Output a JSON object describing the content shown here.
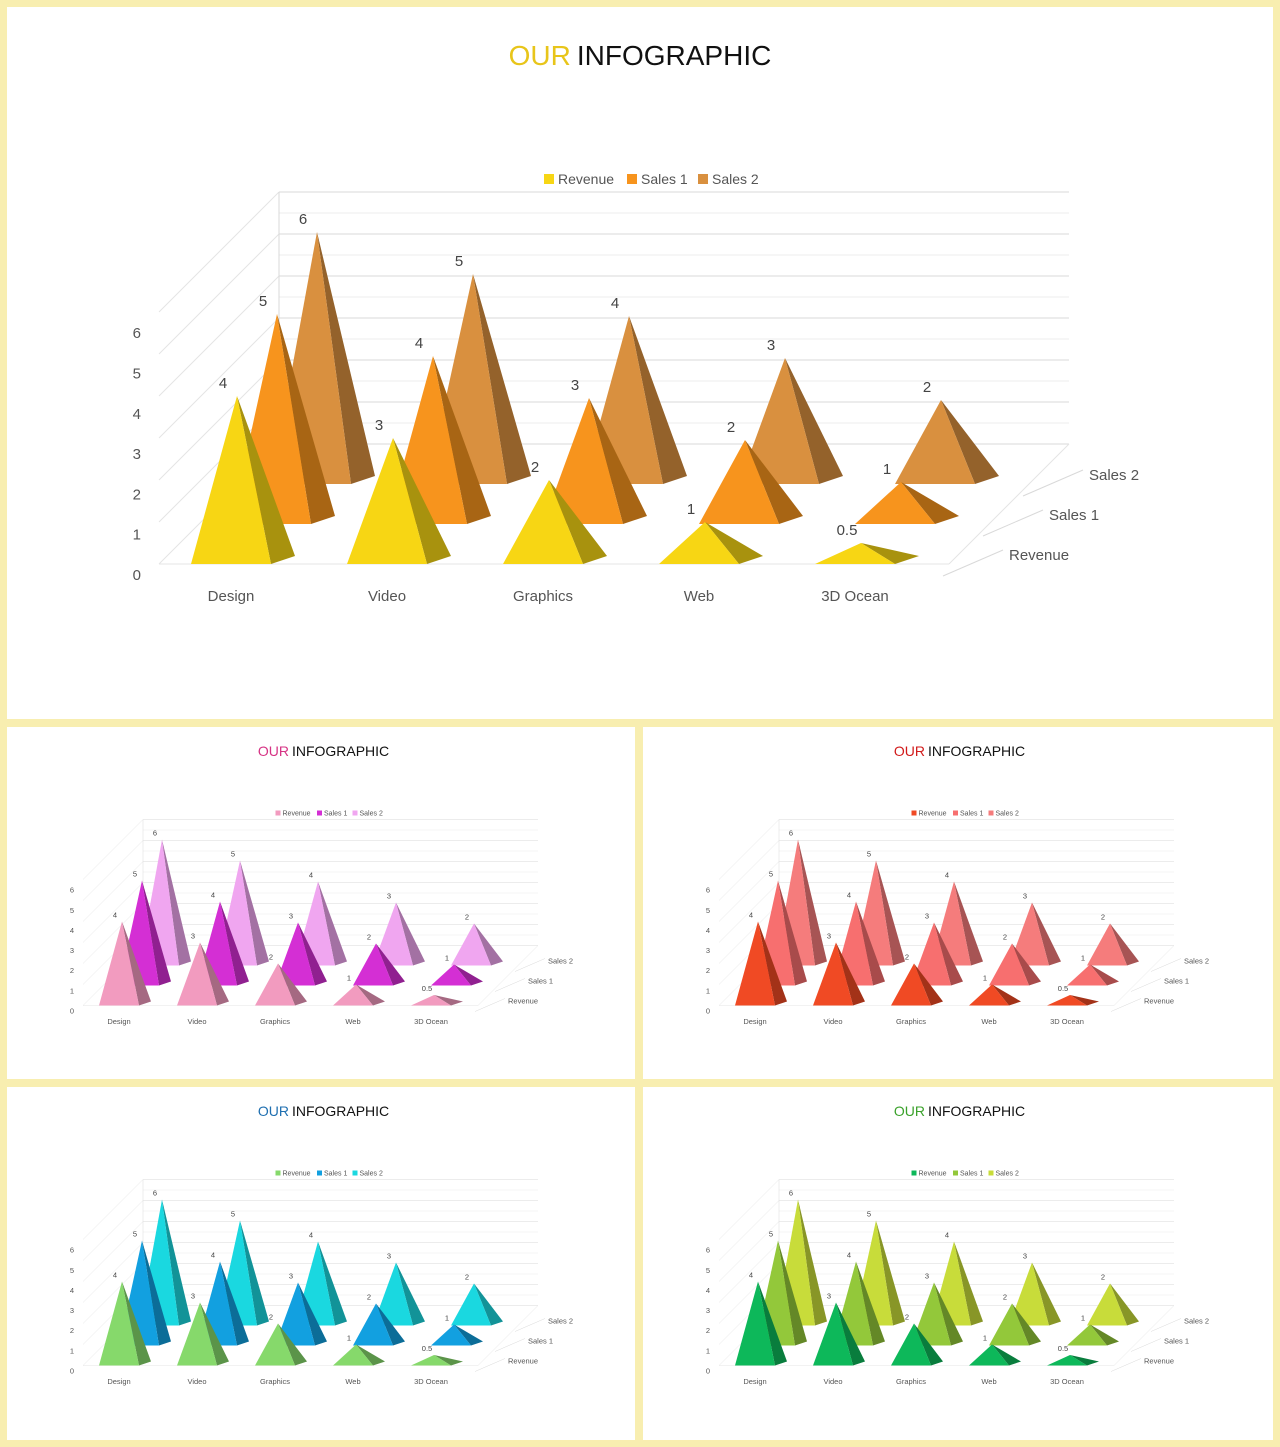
{
  "panels": [
    {
      "id": "main",
      "title_accent": "OUR",
      "title_rest": "INFOGRAPHIC",
      "accent_color": "#e8c51a",
      "series_colors": [
        "#f7d614",
        "#f7941d",
        "#d9903f"
      ],
      "chart_data": {
        "type": "bar",
        "categories": [
          "Design",
          "Video",
          "Graphics",
          "Web",
          "3D Ocean"
        ],
        "series": [
          {
            "name": "Revenue",
            "values": [
              4,
              3,
              2,
              1,
              0.5
            ]
          },
          {
            "name": "Sales 1",
            "values": [
              5,
              4,
              3,
              2,
              1
            ]
          },
          {
            "name": "Sales 2",
            "values": [
              6,
              5,
              4,
              3,
              2
            ]
          }
        ],
        "y_ticks": [
          "0",
          "1",
          "2",
          "3",
          "4",
          "5",
          "6"
        ],
        "ylim": [
          0,
          6
        ],
        "legend": "top",
        "grid": true
      }
    },
    {
      "id": "pink",
      "title_accent": "OUR",
      "title_rest": "INFOGRAPHIC",
      "accent_color": "#d63384",
      "series_colors": [
        "#f29bbf",
        "#d42fd4",
        "#f0a6f0"
      ],
      "chart_data": {
        "type": "bar",
        "categories": [
          "Design",
          "Video",
          "Graphics",
          "Web",
          "3D Ocean"
        ],
        "series": [
          {
            "name": "Revenue",
            "values": [
              4,
              3,
              2,
              1,
              0.5
            ]
          },
          {
            "name": "Sales 1",
            "values": [
              5,
              4,
              3,
              2,
              1
            ]
          },
          {
            "name": "Sales 2",
            "values": [
              6,
              5,
              4,
              3,
              2
            ]
          }
        ],
        "y_ticks": [
          "0",
          "1",
          "2",
          "3",
          "4",
          "5",
          "6"
        ],
        "ylim": [
          0,
          6
        ],
        "legend": "top",
        "grid": true
      }
    },
    {
      "id": "red",
      "title_accent": "OUR",
      "title_rest": "INFOGRAPHIC",
      "accent_color": "#d11a1a",
      "series_colors": [
        "#f04a24",
        "#f76f6f",
        "#f57c7c"
      ],
      "chart_data": {
        "type": "bar",
        "categories": [
          "Design",
          "Video",
          "Graphics",
          "Web",
          "3D Ocean"
        ],
        "series": [
          {
            "name": "Revenue",
            "values": [
              4,
              3,
              2,
              1,
              0.5
            ]
          },
          {
            "name": "Sales 1",
            "values": [
              5,
              4,
              3,
              2,
              1
            ]
          },
          {
            "name": "Sales 2",
            "values": [
              6,
              5,
              4,
              3,
              2
            ]
          }
        ],
        "y_ticks": [
          "0",
          "1",
          "2",
          "3",
          "4",
          "5",
          "6"
        ],
        "ylim": [
          0,
          6
        ],
        "legend": "top",
        "grid": true
      }
    },
    {
      "id": "blue",
      "title_accent": "OUR",
      "title_rest": "INFOGRAPHIC",
      "accent_color": "#1f6fb0",
      "series_colors": [
        "#86d96b",
        "#12a0e0",
        "#1ad8e0"
      ],
      "chart_data": {
        "type": "bar",
        "categories": [
          "Design",
          "Video",
          "Graphics",
          "Web",
          "3D Ocean"
        ],
        "series": [
          {
            "name": "Revenue",
            "values": [
              4,
              3,
              2,
              1,
              0.5
            ]
          },
          {
            "name": "Sales 1",
            "values": [
              5,
              4,
              3,
              2,
              1
            ]
          },
          {
            "name": "Sales 2",
            "values": [
              6,
              5,
              4,
              3,
              2
            ]
          }
        ],
        "y_ticks": [
          "0",
          "1",
          "2",
          "3",
          "4",
          "5",
          "6"
        ],
        "ylim": [
          0,
          6
        ],
        "legend": "top",
        "grid": true
      }
    },
    {
      "id": "green",
      "title_accent": "OUR",
      "title_rest": "INFOGRAPHIC",
      "accent_color": "#3aa12a",
      "series_colors": [
        "#0db85a",
        "#93c83a",
        "#c8dc3a"
      ],
      "chart_data": {
        "type": "bar",
        "categories": [
          "Design",
          "Video",
          "Graphics",
          "Web",
          "3D Ocean"
        ],
        "series": [
          {
            "name": "Revenue",
            "values": [
              4,
              3,
              2,
              1,
              0.5
            ]
          },
          {
            "name": "Sales 1",
            "values": [
              5,
              4,
              3,
              2,
              1
            ]
          },
          {
            "name": "Sales 2",
            "values": [
              6,
              5,
              4,
              3,
              2
            ]
          }
        ],
        "y_ticks": [
          "0",
          "1",
          "2",
          "3",
          "4",
          "5",
          "6"
        ],
        "ylim": [
          0,
          6
        ],
        "legend": "top",
        "grid": true
      }
    }
  ]
}
